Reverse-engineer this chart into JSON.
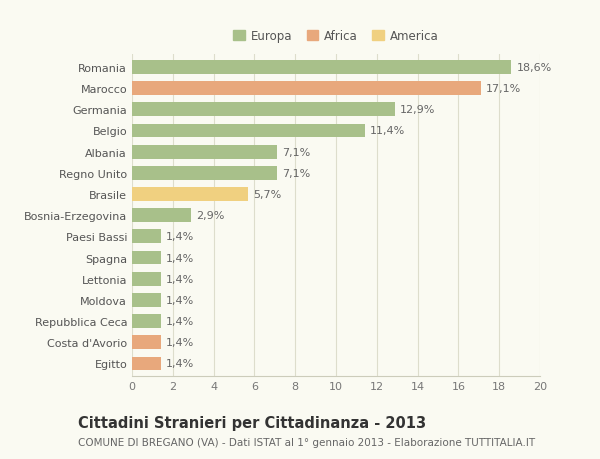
{
  "categories": [
    "Egitto",
    "Costa d'Avorio",
    "Repubblica Ceca",
    "Moldova",
    "Lettonia",
    "Spagna",
    "Paesi Bassi",
    "Bosnia-Erzegovina",
    "Brasile",
    "Regno Unito",
    "Albania",
    "Belgio",
    "Germania",
    "Marocco",
    "Romania"
  ],
  "values": [
    1.4,
    1.4,
    1.4,
    1.4,
    1.4,
    1.4,
    1.4,
    2.9,
    5.7,
    7.1,
    7.1,
    11.4,
    12.9,
    17.1,
    18.6
  ],
  "labels": [
    "1,4%",
    "1,4%",
    "1,4%",
    "1,4%",
    "1,4%",
    "1,4%",
    "1,4%",
    "2,9%",
    "5,7%",
    "7,1%",
    "7,1%",
    "11,4%",
    "12,9%",
    "17,1%",
    "18,6%"
  ],
  "colors": [
    "#e8a87c",
    "#e8a87c",
    "#a8c08a",
    "#a8c08a",
    "#a8c08a",
    "#a8c08a",
    "#a8c08a",
    "#a8c08a",
    "#f0d080",
    "#a8c08a",
    "#a8c08a",
    "#a8c08a",
    "#a8c08a",
    "#e8a87c",
    "#a8c08a"
  ],
  "legend_labels": [
    "Europa",
    "Africa",
    "America"
  ],
  "legend_colors": [
    "#a8c08a",
    "#e8a87c",
    "#f0d080"
  ],
  "title": "Cittadini Stranieri per Cittadinanza - 2013",
  "subtitle": "COMUNE DI BREGANO (VA) - Dati ISTAT al 1° gennaio 2013 - Elaborazione TUTTITALIA.IT",
  "xlim": [
    0,
    20
  ],
  "xticks": [
    0,
    2,
    4,
    6,
    8,
    10,
    12,
    14,
    16,
    18,
    20
  ],
  "background_color": "#fafaf2",
  "bar_height": 0.65,
  "label_fontsize": 8,
  "tick_fontsize": 8,
  "title_fontsize": 10.5,
  "subtitle_fontsize": 7.5
}
